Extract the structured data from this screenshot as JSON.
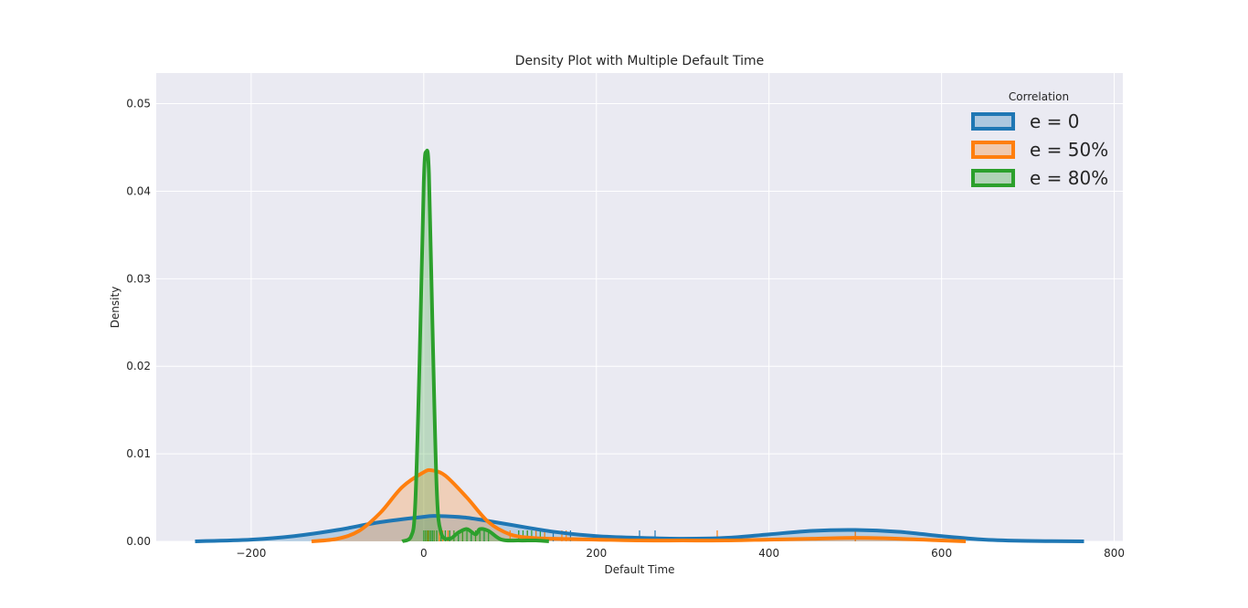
{
  "chart_data": {
    "type": "area",
    "title": "Density Plot with Multiple Default Time",
    "xlabel": "Default Time",
    "ylabel": "Density",
    "xlim": [
      -310,
      810
    ],
    "ylim": [
      0,
      0.0535
    ],
    "xticks": [
      -200,
      0,
      200,
      400,
      600,
      800
    ],
    "xtick_labels": [
      "−200",
      "0",
      "200",
      "400",
      "600",
      "800"
    ],
    "yticks": [
      0,
      0.01,
      0.02,
      0.03,
      0.04,
      0.05
    ],
    "ytick_labels": [
      "0.00",
      "0.01",
      "0.02",
      "0.03",
      "0.04",
      "0.05"
    ],
    "grid": true,
    "background": "#eaeaf2",
    "legend": {
      "title": "Correlation",
      "placement": "top-right"
    },
    "series": [
      {
        "name": "e = 0",
        "color": "#1f77b4",
        "x": [
          -265,
          -200,
          -150,
          -100,
          -50,
          0,
          15,
          50,
          100,
          150,
          200,
          250,
          300,
          350,
          400,
          450,
          500,
          550,
          600,
          650,
          700,
          765
        ],
        "y": [
          0.0,
          0.0002,
          0.0006,
          0.0013,
          0.0022,
          0.0028,
          0.0029,
          0.0027,
          0.0019,
          0.0011,
          0.0006,
          0.0004,
          0.0003,
          0.0004,
          0.0008,
          0.0012,
          0.0013,
          0.0011,
          0.0006,
          0.0002,
          5e-05,
          0.0
        ],
        "rug": [
          5,
          10,
          15,
          20,
          25,
          30,
          40,
          55,
          70,
          110,
          120,
          130,
          140,
          150,
          170,
          250,
          268,
          500
        ]
      },
      {
        "name": "e = 50%",
        "color": "#ff7f0e",
        "x": [
          -130,
          -100,
          -75,
          -50,
          -25,
          0,
          10,
          25,
          50,
          75,
          100,
          125,
          150,
          200,
          250,
          300,
          350,
          400,
          450,
          500,
          550,
          600,
          628
        ],
        "y": [
          0.0,
          0.0003,
          0.0012,
          0.0033,
          0.0062,
          0.0079,
          0.0081,
          0.0075,
          0.005,
          0.0022,
          0.0008,
          0.0004,
          0.0003,
          0.0002,
          0.0001,
          0.0001,
          0.0001,
          0.0002,
          0.0003,
          0.0004,
          0.0003,
          0.0001,
          0.0
        ],
        "rug": [
          2,
          5,
          8,
          12,
          15,
          18,
          22,
          28,
          35,
          45,
          60,
          100,
          120,
          130,
          140,
          160,
          165,
          340,
          500
        ]
      },
      {
        "name": "e = 80%",
        "color": "#2ca02c",
        "x": [
          -25,
          -15,
          -10,
          -5,
          0,
          3,
          6,
          10,
          15,
          20,
          30,
          40,
          50,
          60,
          65,
          75,
          90,
          110,
          130,
          145
        ],
        "y": [
          0.0,
          0.0005,
          0.004,
          0.02,
          0.041,
          0.0445,
          0.042,
          0.025,
          0.006,
          0.001,
          0.0003,
          0.001,
          0.0014,
          0.0008,
          0.0014,
          0.0012,
          0.0002,
          0.0001,
          0.0001,
          0.0
        ],
        "rug": [
          0,
          2,
          4,
          6,
          8,
          10,
          12,
          15,
          20,
          25,
          30,
          35,
          40,
          45,
          50,
          55,
          60,
          65,
          70,
          75,
          110,
          115,
          120,
          125,
          135
        ]
      }
    ]
  }
}
